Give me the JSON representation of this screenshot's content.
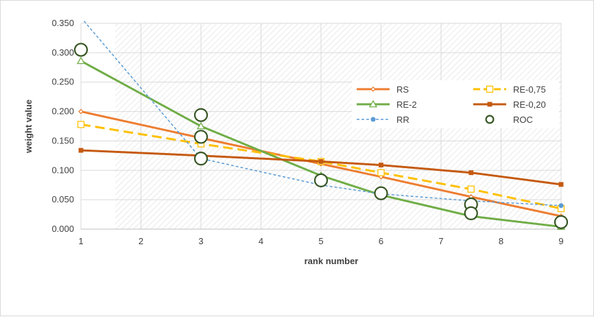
{
  "chart_data": {
    "type": "line",
    "title": "",
    "xlabel": "rank number",
    "ylabel": "weight value",
    "xlim": [
      1,
      9
    ],
    "ylim": [
      0,
      0.35
    ],
    "x_ticks": [
      "1",
      "2",
      "3",
      "4",
      "5",
      "6",
      "7",
      "8",
      "9"
    ],
    "y_ticks": [
      "0.000",
      "0.050",
      "0.100",
      "0.150",
      "0.200",
      "0.250",
      "0.300",
      "0.350"
    ],
    "grid": true,
    "legend_position": "right-center",
    "series": [
      {
        "name": "RS",
        "color": "#ED7D31",
        "marker": "diamond",
        "line": "solid",
        "x": [
          1,
          3,
          5,
          6,
          7.5,
          9
        ],
        "y": [
          0.2,
          0.155,
          0.111,
          0.089,
          0.055,
          0.022
        ]
      },
      {
        "name": "RE-0,75",
        "color": "#FFC000",
        "marker": "square",
        "line": "dashed",
        "x": [
          1,
          3,
          5,
          6,
          7.5,
          9
        ],
        "y": [
          0.178,
          0.145,
          0.115,
          0.096,
          0.068,
          0.035
        ]
      },
      {
        "name": "RE-2",
        "color": "#70AD47",
        "marker": "triangle",
        "line": "solid",
        "x": [
          1,
          3,
          5,
          6,
          7.5,
          9
        ],
        "y": [
          0.286,
          0.175,
          0.091,
          0.058,
          0.022,
          0.004
        ]
      },
      {
        "name": "RE-0,20",
        "color": "#C55A11",
        "marker": "square",
        "line": "solid",
        "x": [
          1,
          3,
          5,
          6,
          7.5,
          9
        ],
        "y": [
          0.134,
          0.125,
          0.115,
          0.109,
          0.096,
          0.076
        ]
      },
      {
        "name": "RR",
        "color": "#5B9BD5",
        "marker": "circle",
        "line": "dotted",
        "x": [
          1,
          3,
          5,
          6,
          7.5,
          9
        ],
        "y": [
          0.36,
          0.12,
          0.075,
          0.06,
          0.048,
          0.04
        ]
      },
      {
        "name": "ROC",
        "color": "#375623",
        "marker": "open-circle",
        "line": "none",
        "x": [
          1,
          3,
          3,
          3,
          5,
          6,
          7.5,
          7.5,
          9
        ],
        "y": [
          0.305,
          0.194,
          0.157,
          0.12,
          0.083,
          0.061,
          0.042,
          0.027,
          0.012
        ]
      }
    ]
  }
}
